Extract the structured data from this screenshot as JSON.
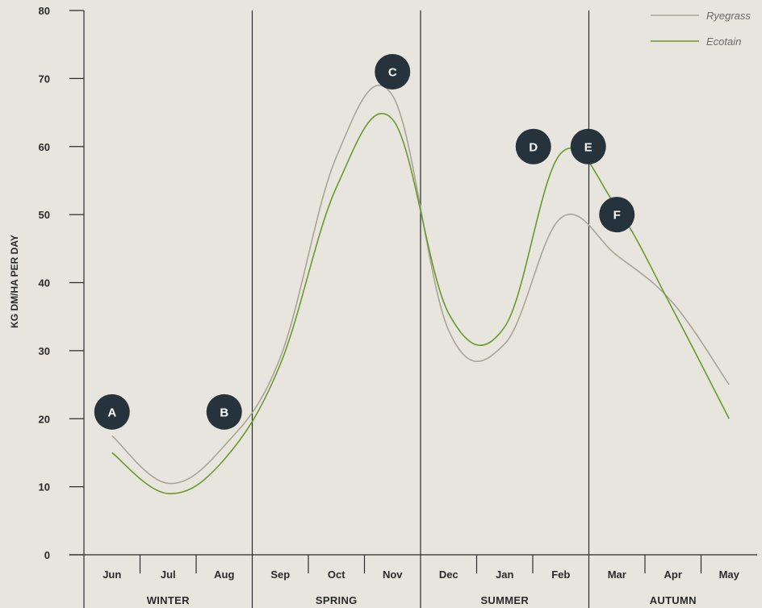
{
  "chart_data": {
    "type": "line",
    "categories": [
      "Jun",
      "Jul",
      "Aug",
      "Sep",
      "Oct",
      "Nov",
      "Dec",
      "Jan",
      "Feb",
      "Mar",
      "Apr",
      "May"
    ],
    "seasons": [
      "WINTER",
      "SPRING",
      "SUMMER",
      "AUTUMN"
    ],
    "series": [
      {
        "name": "Ryegrass",
        "color": "#a8a496",
        "values": [
          17.5,
          10.5,
          16,
          29,
          58.5,
          67.5,
          33,
          31,
          49.5,
          44,
          37,
          25
        ]
      },
      {
        "name": "Ecotain",
        "color": "#6b9a2c",
        "values": [
          15,
          9,
          14,
          28,
          54,
          64,
          35.5,
          33.5,
          59,
          51,
          36,
          20
        ]
      }
    ],
    "ylabel": "KG DM/HA PER DAY",
    "xlabel": "",
    "ylim": [
      0,
      80
    ],
    "yticks": [
      0,
      10,
      20,
      30,
      40,
      50,
      60,
      70,
      80
    ],
    "grid": false,
    "legend": "top-right",
    "markers": [
      {
        "label": "A",
        "x": "Jun",
        "y": 21
      },
      {
        "label": "B",
        "x": "Aug",
        "y": 21
      },
      {
        "label": "C",
        "x": "Nov",
        "y": 71
      },
      {
        "label": "D",
        "x": "Feb",
        "y": 60
      },
      {
        "label": "E",
        "x": "Feb",
        "y": 60
      },
      {
        "label": "F",
        "x": "Mar",
        "y": 50
      }
    ],
    "marker_color": "#26333d"
  }
}
